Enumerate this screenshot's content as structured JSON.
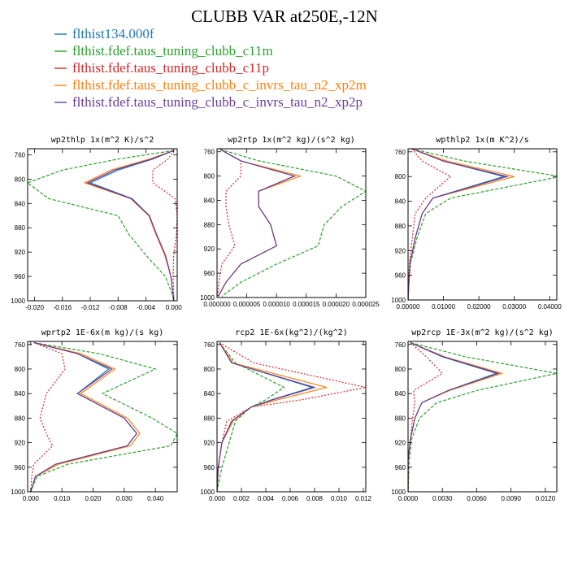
{
  "title": "CLUBB VAR at250E,-12N",
  "series": [
    {
      "name": "flthist134.000f",
      "color": "#1f77b4",
      "dash": ""
    },
    {
      "name": "flthist.fdef.taus_tuning_clubb_c11m",
      "color": "#2ca02c",
      "dash": "4,2"
    },
    {
      "name": "flthist.fdef.taus_tuning_clubb_c11p",
      "color": "#d62728",
      "dash": "2,2"
    },
    {
      "name": "flthist.fdef.taus_tuning_clubb_c_invrs_tau_n2_xp2m",
      "color": "#ff7f0e",
      "dash": ""
    },
    {
      "name": "flthist.fdef.taus_tuning_clubb_c_invrs_tau_n2_xp2p",
      "color": "#6a3d9a",
      "dash": ""
    }
  ],
  "chart_data": [
    {
      "type": "line",
      "title": "wp2thlp  1x(m^2 K)/s^2",
      "xlim": [
        -0.021,
        0.0005
      ],
      "xticks": [
        "-0.020",
        "-0.016",
        "-0.012",
        "-0.008",
        "-0.004",
        "0.000"
      ],
      "xtick_values": [
        -0.02,
        -0.016,
        -0.012,
        -0.008,
        -0.004,
        0.0
      ],
      "ylim": [
        1000,
        750
      ],
      "yticks": [
        760,
        800,
        840,
        880,
        920,
        960,
        1000
      ],
      "levels": [
        753,
        767,
        785,
        806,
        832,
        860,
        890,
        925,
        960,
        990,
        1000
      ],
      "values": [
        [
          0.0,
          -0.003,
          -0.008,
          -0.012,
          -0.006,
          -0.0035,
          -0.0025,
          -0.0012,
          -0.0004,
          -0.0001,
          0.0
        ],
        [
          0.0,
          -0.008,
          -0.016,
          -0.021,
          -0.018,
          -0.008,
          -0.0065,
          -0.004,
          -0.0012,
          -0.0002,
          0.0
        ],
        [
          0.0,
          -0.0008,
          -0.003,
          -0.003,
          0.0002,
          0.0005,
          0.0004,
          0.0,
          -0.0001,
          0.0,
          0.0
        ],
        [
          0.0,
          -0.0035,
          -0.009,
          -0.0128,
          -0.0062,
          -0.0036,
          -0.0026,
          -0.0013,
          -0.0004,
          -0.0001,
          0.0
        ],
        [
          0.0,
          -0.0032,
          -0.0085,
          -0.0124,
          -0.0061,
          -0.0035,
          -0.0025,
          -0.0012,
          -0.0004,
          -0.0001,
          0.0
        ]
      ]
    },
    {
      "type": "line",
      "title": "wp2rtp  1x(m^2 kg)/(s^2 kg)",
      "xlim": [
        0.0,
        2.5e-05
      ],
      "xticks": [
        "0.000000",
        "0.000005",
        "0.000010",
        "0.000015",
        "0.000020",
        "0.000025"
      ],
      "xtick_values": [
        0.0,
        5e-06,
        1e-05,
        1.5e-05,
        2e-05,
        2.5e-05
      ],
      "ylim": [
        1000,
        755
      ],
      "yticks": [
        760,
        800,
        840,
        880,
        920,
        960,
        1000
      ],
      "levels": [
        756,
        775,
        800,
        825,
        850,
        880,
        915,
        945,
        975,
        998
      ],
      "values": [
        [
          5e-07,
          4e-06,
          1.3e-05,
          7e-06,
          7e-06,
          9e-06,
          1e-05,
          4e-06,
          1.5e-06,
          2e-07
        ],
        [
          5e-07,
          7e-06,
          2e-05,
          2.5e-05,
          2.1e-05,
          1.8e-05,
          1.7e-05,
          1e-05,
          4e-06,
          8e-07
        ],
        [
          5e-07,
          4e-06,
          4e-06,
          1.5e-06,
          1.5e-06,
          2e-06,
          3e-06,
          8e-07,
          3e-07,
          1e-07
        ],
        [
          5e-07,
          4e-06,
          1.4e-05,
          7e-06,
          7e-06,
          9e-06,
          1e-05,
          4e-06,
          1.5e-06,
          2e-07
        ],
        [
          5e-07,
          4e-06,
          1.3e-05,
          7e-06,
          7e-06,
          9e-06,
          1e-05,
          4e-06,
          1.5e-06,
          2e-07
        ]
      ]
    },
    {
      "type": "line",
      "title": "wpthlp2  1x(m K^2)/s",
      "xlim": [
        0.0,
        0.042
      ],
      "xticks": [
        "0.00000",
        "0.01000",
        "0.02000",
        "0.03000",
        "0.04000"
      ],
      "xtick_values": [
        0.0,
        0.01,
        0.02,
        0.03,
        0.04
      ],
      "ylim": [
        1000,
        755
      ],
      "yticks": [
        760,
        800,
        840,
        880,
        920,
        960,
        1000
      ],
      "levels": [
        755,
        775,
        800,
        835,
        860,
        900,
        940,
        975,
        1000
      ],
      "values": [
        [
          0.001,
          0.01,
          0.027,
          0.007,
          0.004,
          0.002,
          0.0006,
          0.0002,
          0.0
        ],
        [
          0.001,
          0.016,
          0.043,
          0.012,
          0.005,
          0.0025,
          0.0007,
          0.0002,
          0.0
        ],
        [
          0.001,
          0.004,
          0.012,
          0.005,
          0.002,
          0.0012,
          0.0004,
          0.0001,
          0.0
        ],
        [
          0.001,
          0.011,
          0.03,
          0.007,
          0.004,
          0.002,
          0.0006,
          0.0002,
          0.0
        ],
        [
          0.001,
          0.01,
          0.028,
          0.007,
          0.004,
          0.002,
          0.0006,
          0.0002,
          0.0
        ]
      ]
    },
    {
      "type": "line",
      "title": "wprtp2  1E-6x(m kg)/(s kg)",
      "xlim": [
        -0.001,
        0.047
      ],
      "xticks": [
        "0.000",
        "0.010",
        "0.020",
        "0.030",
        "0.040"
      ],
      "xtick_values": [
        0.0,
        0.01,
        0.02,
        0.03,
        0.04
      ],
      "ylim": [
        1000,
        755
      ],
      "yticks": [
        760,
        800,
        840,
        880,
        920,
        960,
        1000
      ],
      "levels": [
        757,
        775,
        800,
        840,
        880,
        905,
        925,
        955,
        975,
        1000
      ],
      "values": [
        [
          0.001,
          0.015,
          0.025,
          0.015,
          0.03,
          0.034,
          0.031,
          0.008,
          0.0015,
          0.0
        ],
        [
          0.001,
          0.022,
          0.04,
          0.023,
          0.039,
          0.047,
          0.045,
          0.012,
          0.002,
          0.0
        ],
        [
          0.001,
          0.01,
          0.011,
          0.005,
          0.003,
          0.005,
          0.007,
          0.001,
          0.0003,
          0.0
        ],
        [
          0.001,
          0.016,
          0.027,
          0.016,
          0.031,
          0.035,
          0.032,
          0.009,
          0.0015,
          0.0
        ],
        [
          0.001,
          0.015,
          0.026,
          0.015,
          0.03,
          0.034,
          0.031,
          0.008,
          0.0015,
          0.0
        ]
      ]
    },
    {
      "type": "line",
      "title": "rcp2  1E-6x(kg^2)/(kg^2)",
      "xlim": [
        0.0,
        0.0122
      ],
      "xticks": [
        "0.000",
        "0.002",
        "0.004",
        "0.006",
        "0.008",
        "0.010",
        "0.012"
      ],
      "xtick_values": [
        0.0,
        0.002,
        0.004,
        0.006,
        0.008,
        0.01,
        0.012
      ],
      "ylim": [
        1000,
        755
      ],
      "yticks": [
        760,
        800,
        840,
        880,
        920,
        960,
        1000
      ],
      "levels": [
        757,
        790,
        830,
        850,
        862,
        885,
        920,
        960,
        1000
      ],
      "values": [
        [
          0.0002,
          0.0012,
          0.0078,
          0.0045,
          0.0028,
          0.0012,
          0.0004,
          0.0001,
          0.0
        ],
        [
          0.0002,
          0.0015,
          0.0055,
          0.004,
          0.0028,
          0.0015,
          0.001,
          0.0004,
          0.0
        ],
        [
          0.0002,
          0.003,
          0.0122,
          0.007,
          0.0028,
          0.0008,
          0.0004,
          0.0001,
          0.0
        ],
        [
          0.0002,
          0.0013,
          0.009,
          0.005,
          0.0028,
          0.0013,
          0.0004,
          0.0001,
          0.0
        ],
        [
          0.0002,
          0.0012,
          0.008,
          0.0046,
          0.0028,
          0.0012,
          0.0004,
          0.0001,
          0.0
        ]
      ]
    },
    {
      "type": "line",
      "title": "wp2rcp  1E-3x(m^2 kg)/(s^2 kg)",
      "xlim": [
        0.0,
        0.013
      ],
      "xticks": [
        "0.0000",
        "0.0030",
        "0.0060",
        "0.0090",
        "0.0120"
      ],
      "xtick_values": [
        0.0,
        0.003,
        0.006,
        0.009,
        0.012
      ],
      "ylim": [
        1000,
        755
      ],
      "yticks": [
        760,
        800,
        840,
        880,
        920,
        960,
        1000
      ],
      "levels": [
        757,
        780,
        807,
        835,
        855,
        880,
        915,
        950,
        1000
      ],
      "values": [
        [
          0.0002,
          0.003,
          0.0077,
          0.0035,
          0.0012,
          0.0006,
          0.0002,
          0.0,
          0.0
        ],
        [
          0.0002,
          0.005,
          0.013,
          0.006,
          0.0025,
          0.001,
          0.0003,
          0.0001,
          0.0
        ],
        [
          0.0002,
          0.0016,
          0.003,
          0.0005,
          0.0006,
          0.0004,
          0.0002,
          0.0,
          0.0
        ],
        [
          0.0002,
          0.0032,
          0.0082,
          0.0036,
          0.0012,
          0.0006,
          0.0002,
          0.0,
          0.0
        ],
        [
          0.0002,
          0.0031,
          0.0079,
          0.0035,
          0.0012,
          0.0006,
          0.0002,
          0.0,
          0.0
        ]
      ]
    }
  ]
}
